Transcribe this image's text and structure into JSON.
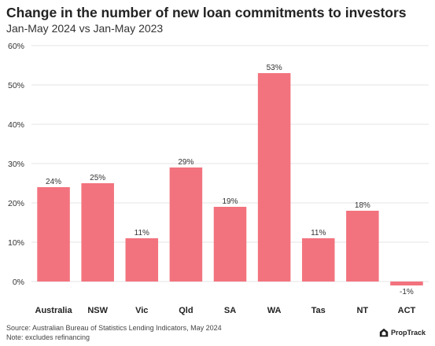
{
  "title": "Change in the number of new loan commitments to investors",
  "subtitle": "Jan-May 2024 vs Jan-May 2023",
  "source": "Source: Australian Bureau of Statistics Lending Indicators, May 2024",
  "note": "Note: excludes refinancing",
  "brand": "PropTrack",
  "colors": {
    "bar": "#f2737e",
    "grid": "#e6e6e6",
    "text": "#333333"
  },
  "chart_data": {
    "type": "bar",
    "categories": [
      "Australia",
      "NSW",
      "Vic",
      "Qld",
      "SA",
      "WA",
      "Tas",
      "NT",
      "ACT"
    ],
    "values": [
      24,
      25,
      11,
      29,
      19,
      53,
      11,
      18,
      -1
    ],
    "data_labels": [
      "24%",
      "25%",
      "11%",
      "29%",
      "19%",
      "53%",
      "11%",
      "18%",
      "-1%"
    ],
    "yticks": [
      0,
      10,
      20,
      30,
      40,
      50,
      60
    ],
    "ytick_labels": [
      "0%",
      "10%",
      "20%",
      "30%",
      "40%",
      "50%",
      "60%"
    ],
    "ylim": [
      -1,
      60
    ],
    "grid": true,
    "legend": false
  }
}
